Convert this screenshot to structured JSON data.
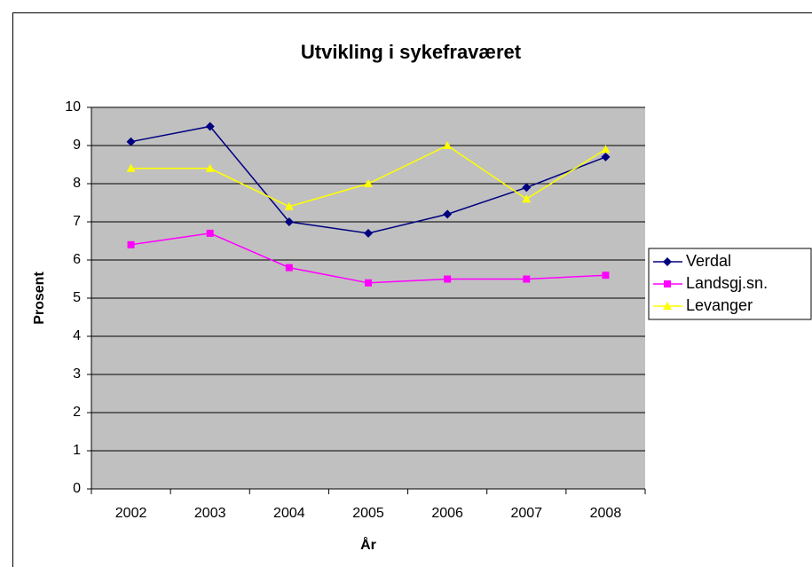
{
  "chart_data": {
    "type": "line",
    "title": "Utvikling i sykefraværet",
    "x_label": "År",
    "y_label": "Prosent",
    "categories": [
      "2002",
      "2003",
      "2004",
      "2005",
      "2006",
      "2007",
      "2008"
    ],
    "series": [
      {
        "name": "Verdal",
        "color": "#000080",
        "marker": "diamond",
        "values": [
          9.1,
          9.5,
          7.0,
          6.7,
          7.2,
          7.9,
          8.7
        ]
      },
      {
        "name": "Landsgj.sn.",
        "color": "#ff00ff",
        "marker": "square",
        "values": [
          6.4,
          6.7,
          5.8,
          5.4,
          5.5,
          5.5,
          5.6
        ]
      },
      {
        "name": "Levanger",
        "color": "#ffff00",
        "marker": "triangle",
        "values": [
          8.4,
          8.4,
          7.4,
          8.0,
          9.0,
          7.6,
          8.9
        ]
      }
    ],
    "ylim": [
      0,
      10
    ],
    "yticks": [
      0,
      1,
      2,
      3,
      4,
      5,
      6,
      7,
      8,
      9,
      10
    ],
    "grid": true,
    "legend": "right",
    "plot_background": "#c0c0c0"
  }
}
